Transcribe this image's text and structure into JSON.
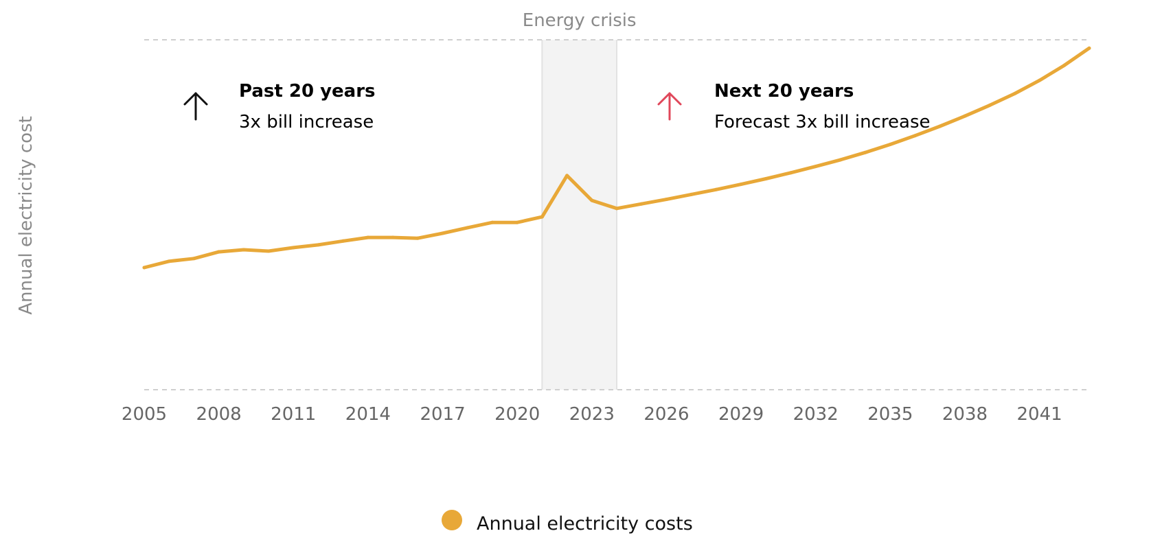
{
  "chart_data": {
    "type": "line",
    "title": "",
    "xlabel": "",
    "ylabel": "Annual electricity cost",
    "y_units": "relative index (no y tick values shown)",
    "ylim": [
      0,
      100
    ],
    "xlim": [
      2005,
      2043
    ],
    "x_ticks": [
      2005,
      2008,
      2011,
      2014,
      2017,
      2020,
      2023,
      2026,
      2029,
      2032,
      2035,
      2038,
      2041
    ],
    "x_tick_labels": [
      "2005",
      "2008",
      "2011",
      "2014",
      "2017",
      "2020",
      "2023",
      "2026",
      "2029",
      "2032",
      "2035",
      "2038",
      "2041"
    ],
    "grid": "dashed horizontal lines at top and bottom only",
    "legend_position": "bottom-center",
    "series": [
      {
        "name": "Annual electricity costs",
        "color": "#e8a838",
        "x": [
          2005,
          2006,
          2007,
          2008,
          2009,
          2010,
          2011,
          2012,
          2013,
          2014,
          2015,
          2016,
          2017,
          2018,
          2019,
          2020,
          2021,
          2022,
          2023,
          2024,
          2025,
          2026,
          2027,
          2028,
          2029,
          2030,
          2031,
          2032,
          2033,
          2034,
          2035,
          2036,
          2037,
          2038,
          2039,
          2040,
          2041,
          2042,
          2043
        ],
        "values": [
          34.9,
          36.7,
          37.5,
          39.4,
          40.0,
          39.6,
          40.6,
          41.4,
          42.5,
          43.5,
          43.5,
          43.3,
          44.7,
          46.3,
          47.8,
          47.8,
          49.4,
          61.2,
          54.1,
          51.8,
          53.1,
          54.4,
          55.8,
          57.2,
          58.7,
          60.3,
          62.0,
          63.8,
          65.7,
          67.8,
          70.1,
          72.6,
          75.3,
          78.2,
          81.3,
          84.6,
          88.4,
          92.7,
          97.6
        ]
      }
    ],
    "highlight_band": {
      "label": "Energy crisis",
      "x_start": 2021,
      "x_end": 2024,
      "fill": "#f3f3f3",
      "border": "#e2e2e2"
    },
    "annotations": [
      {
        "title": "Past 20 years",
        "body": "3x bill increase",
        "icon": "arrow-up-icon",
        "icon_color": "#111111"
      },
      {
        "title": "Next 20 years",
        "body": "Forecast 3x bill increase",
        "icon": "arrow-up-icon",
        "icon_color": "#e0475a"
      }
    ],
    "legend": [
      {
        "label": "Annual electricity costs",
        "color": "#e8a838",
        "marker": "circle"
      }
    ]
  }
}
